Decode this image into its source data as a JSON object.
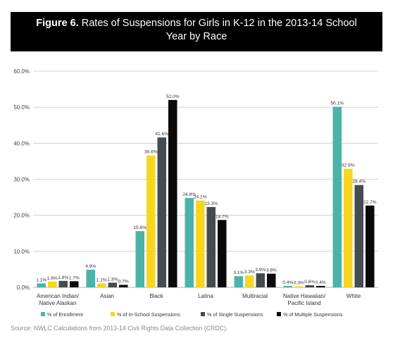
{
  "figure": {
    "label": "Figure 6.",
    "title_line1": "Rates of Suspensions for Girls in K-12 in the 2013-14 School",
    "title_line2": "Year by Race"
  },
  "source": "Source: NWLC Calculations from 2013-14 Civil Rights Data Collection (CRDC).",
  "chart_data": {
    "type": "bar",
    "title": "Rates of Suspensions for Girls in K-12 in the 2013-14 School Year by Race",
    "categories": [
      [
        "American Indian/",
        "Native Alaskan"
      ],
      [
        "Asian"
      ],
      [
        "Black"
      ],
      [
        "Latina"
      ],
      [
        "Multiracial"
      ],
      [
        "Native Hawaiian/",
        "Pacific Island"
      ],
      [
        "White"
      ]
    ],
    "series": [
      {
        "name": "% of Enrollment",
        "color": "#4cb3a8",
        "values": [
          1.1,
          4.9,
          15.6,
          24.8,
          3.1,
          0.4,
          50.1
        ],
        "labels": [
          "1.1%",
          "4.9%",
          "15.6%",
          "24.8%",
          "3.1%",
          "0.4%",
          "50.1%"
        ]
      },
      {
        "name": "% of In-School Suspensions",
        "color": "#f7d622",
        "values": [
          1.6,
          1.1,
          36.6,
          24.1,
          3.3,
          0.3,
          32.9
        ],
        "labels": [
          "1.6%",
          "1.1%",
          "36.6%",
          "24.1%",
          "3.3%",
          "0.3%",
          "32.9%"
        ]
      },
      {
        "name": "% of Single Suspensions",
        "color": "#444c52",
        "values": [
          1.8,
          1.3,
          41.6,
          22.3,
          3.9,
          0.6,
          28.4
        ],
        "labels": [
          "1.8%",
          "1.3%",
          "41.6%",
          "22.3%",
          "3.9%",
          "0.6%",
          "28.4%"
        ]
      },
      {
        "name": "% of Multiple Suspensions",
        "color": "#0a0a0a",
        "values": [
          1.7,
          0.7,
          52.0,
          18.7,
          3.8,
          0.4,
          22.7
        ],
        "labels": [
          "1.7%",
          "0.7%",
          "52.0%",
          "18.7%",
          "3.8%",
          "0.4%",
          "22.7%"
        ]
      }
    ],
    "ylim": [
      0,
      60
    ],
    "yticks": [
      0,
      10,
      20,
      30,
      40,
      50,
      60
    ],
    "ytick_labels": [
      "0.0%",
      "10.0%",
      "20.0%",
      "30.0%",
      "40.0%",
      "50.0%",
      "60.0%"
    ],
    "grid": true,
    "legend_position": "bottom"
  }
}
